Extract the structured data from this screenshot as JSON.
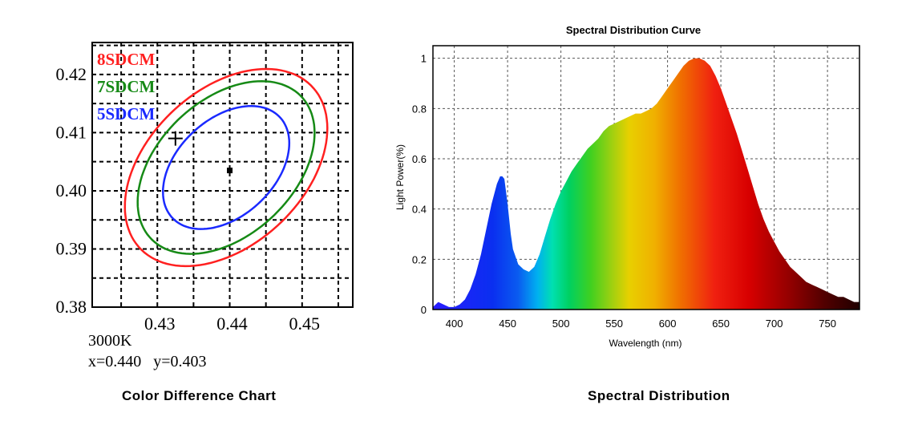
{
  "left_panel": {
    "caption": "Color Difference Chart",
    "cct_label": "3000K",
    "coords_label": "x=0.440   y=0.403"
  },
  "right_panel": {
    "caption": "Spectral Distribution"
  },
  "chart_data": [
    {
      "type": "scatter",
      "xlim": [
        0.421,
        0.457
      ],
      "ylim": [
        0.38,
        0.4255
      ],
      "x_ticks": [
        "0.43",
        "0.44",
        "0.45"
      ],
      "y_ticks": [
        "0.38",
        "0.39",
        "0.40",
        "0.41",
        "0.42"
      ],
      "grid": true,
      "legend_placement": "top-left",
      "ellipses": [
        {
          "name": "8SDCM",
          "color": "#ff2020",
          "center": [
            0.4395,
            0.404
          ],
          "semi_major": 0.0186,
          "semi_minor": 0.0117,
          "angle_deg": 58
        },
        {
          "name": "7SDCM",
          "color": "#168a16",
          "center": [
            0.4395,
            0.404
          ],
          "semi_major": 0.0163,
          "semi_minor": 0.0102,
          "angle_deg": 58
        },
        {
          "name": "5SDCM",
          "color": "#1a2aff",
          "center": [
            0.4395,
            0.404
          ],
          "semi_major": 0.0116,
          "semi_minor": 0.0073,
          "angle_deg": 58
        }
      ],
      "points": [
        {
          "x": 0.44,
          "y": 0.4035,
          "marker": "square"
        },
        {
          "x": 0.4325,
          "y": 0.409,
          "marker": "plus"
        }
      ]
    },
    {
      "type": "area",
      "title": "Spectral Distribution Curve",
      "xlabel": "Wavelength  (nm)",
      "ylabel": "Light Power(%)",
      "xlim": [
        380,
        780
      ],
      "ylim": [
        0,
        1.05
      ],
      "x_ticks": [
        "400",
        "450",
        "500",
        "550",
        "600",
        "650",
        "700",
        "750"
      ],
      "y_ticks": [
        "0",
        "0.2",
        "0.4",
        "0.6",
        "0.8",
        "1"
      ],
      "grid": true,
      "fill": "visible-spectrum-gradient",
      "x": [
        380,
        385,
        390,
        395,
        400,
        405,
        410,
        415,
        420,
        425,
        430,
        435,
        440,
        443,
        445,
        447,
        450,
        453,
        455,
        460,
        465,
        470,
        475,
        480,
        485,
        490,
        495,
        500,
        505,
        510,
        515,
        520,
        525,
        530,
        535,
        540,
        545,
        550,
        555,
        560,
        565,
        570,
        575,
        580,
        585,
        590,
        595,
        600,
        605,
        610,
        615,
        620,
        625,
        630,
        635,
        640,
        645,
        650,
        655,
        660,
        665,
        670,
        675,
        680,
        685,
        690,
        695,
        700,
        705,
        710,
        715,
        720,
        725,
        730,
        735,
        740,
        745,
        750,
        755,
        760,
        765,
        770,
        775,
        780
      ],
      "values": [
        0.01,
        0.03,
        0.02,
        0.01,
        0.01,
        0.02,
        0.04,
        0.08,
        0.14,
        0.22,
        0.32,
        0.42,
        0.5,
        0.53,
        0.53,
        0.52,
        0.42,
        0.3,
        0.24,
        0.18,
        0.16,
        0.15,
        0.17,
        0.22,
        0.29,
        0.36,
        0.42,
        0.47,
        0.51,
        0.55,
        0.58,
        0.61,
        0.64,
        0.66,
        0.68,
        0.71,
        0.73,
        0.74,
        0.75,
        0.76,
        0.77,
        0.78,
        0.78,
        0.79,
        0.8,
        0.82,
        0.85,
        0.88,
        0.91,
        0.94,
        0.97,
        0.99,
        1.0,
        1.0,
        0.99,
        0.97,
        0.93,
        0.88,
        0.82,
        0.76,
        0.7,
        0.63,
        0.56,
        0.49,
        0.42,
        0.36,
        0.31,
        0.27,
        0.23,
        0.2,
        0.17,
        0.15,
        0.13,
        0.11,
        0.1,
        0.09,
        0.08,
        0.07,
        0.06,
        0.05,
        0.05,
        0.04,
        0.03,
        0.03
      ]
    }
  ]
}
